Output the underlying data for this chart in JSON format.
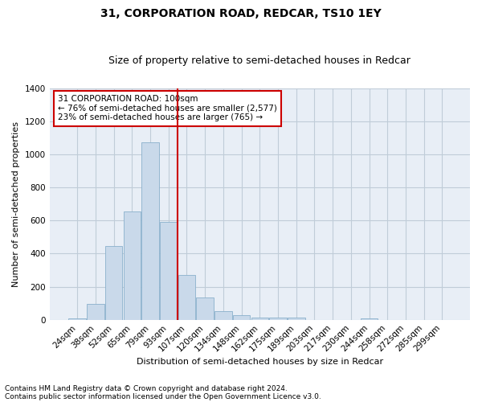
{
  "title": "31, CORPORATION ROAD, REDCAR, TS10 1EY",
  "subtitle": "Size of property relative to semi-detached houses in Redcar",
  "xlabel": "Distribution of semi-detached houses by size in Redcar",
  "ylabel": "Number of semi-detached properties",
  "footnote1": "Contains HM Land Registry data © Crown copyright and database right 2024.",
  "footnote2": "Contains public sector information licensed under the Open Government Licence v3.0.",
  "annotation_title": "31 CORPORATION ROAD: 100sqm",
  "annotation_line1": "← 76% of semi-detached houses are smaller (2,577)",
  "annotation_line2": "23% of semi-detached houses are larger (765) →",
  "bar_labels": [
    "24sqm",
    "38sqm",
    "52sqm",
    "65sqm",
    "79sqm",
    "93sqm",
    "107sqm",
    "120sqm",
    "134sqm",
    "148sqm",
    "162sqm",
    "175sqm",
    "189sqm",
    "203sqm",
    "217sqm",
    "230sqm",
    "244sqm",
    "258sqm",
    "272sqm",
    "285sqm",
    "299sqm"
  ],
  "bar_values": [
    10,
    95,
    445,
    655,
    1070,
    590,
    270,
    135,
    50,
    30,
    15,
    15,
    12,
    0,
    0,
    0,
    10,
    0,
    0,
    0,
    0
  ],
  "bar_color": "#c9d9ea",
  "bar_edge_color": "#8ab0cc",
  "vline_color": "#cc0000",
  "vline_x": 5.5,
  "ylim": [
    0,
    1400
  ],
  "yticks": [
    0,
    200,
    400,
    600,
    800,
    1000,
    1200,
    1400
  ],
  "grid_color": "#c0ccd8",
  "bg_color": "#e8eef6",
  "box_color": "#cc0000",
  "title_fontsize": 10,
  "subtitle_fontsize": 9,
  "axis_label_fontsize": 8,
  "tick_fontsize": 7.5,
  "annotation_fontsize": 7.5
}
